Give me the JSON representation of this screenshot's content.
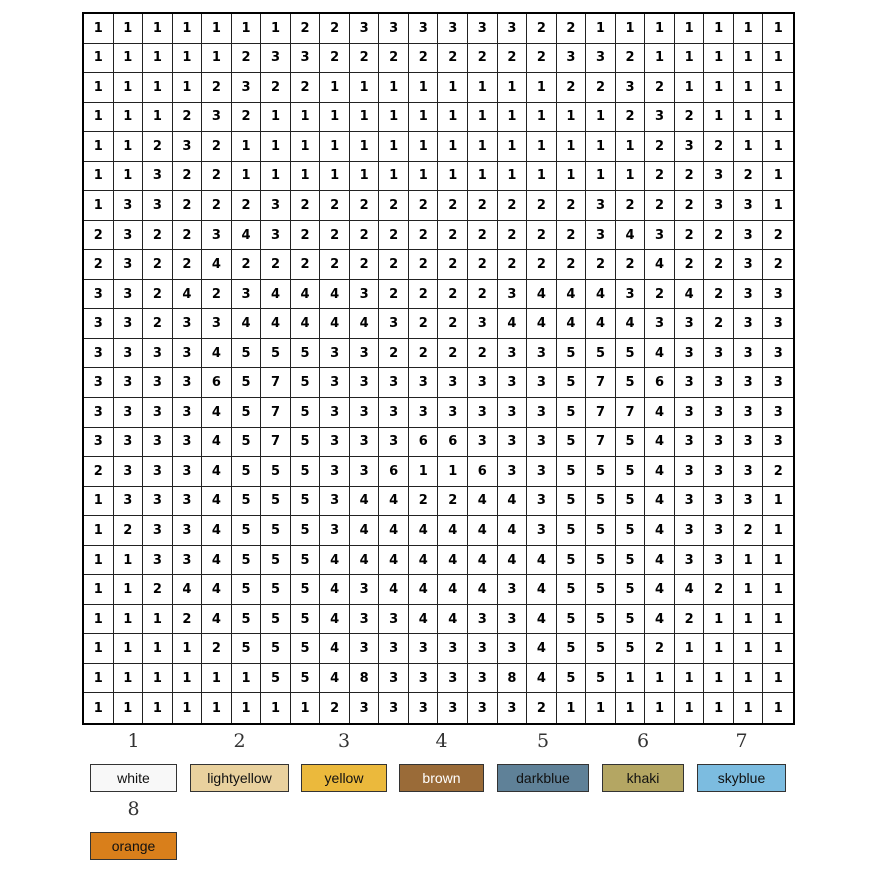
{
  "grid": [
    [
      1,
      1,
      1,
      1,
      1,
      1,
      1,
      2,
      2,
      3,
      3,
      3,
      3,
      3,
      3,
      2,
      2,
      1,
      1,
      1,
      1,
      1,
      1,
      1
    ],
    [
      1,
      1,
      1,
      1,
      1,
      2,
      3,
      3,
      2,
      2,
      2,
      2,
      2,
      2,
      2,
      2,
      3,
      3,
      2,
      1,
      1,
      1,
      1,
      1
    ],
    [
      1,
      1,
      1,
      1,
      2,
      3,
      2,
      2,
      1,
      1,
      1,
      1,
      1,
      1,
      1,
      1,
      2,
      2,
      3,
      2,
      1,
      1,
      1,
      1
    ],
    [
      1,
      1,
      1,
      2,
      3,
      2,
      1,
      1,
      1,
      1,
      1,
      1,
      1,
      1,
      1,
      1,
      1,
      1,
      2,
      3,
      2,
      1,
      1,
      1
    ],
    [
      1,
      1,
      2,
      3,
      2,
      1,
      1,
      1,
      1,
      1,
      1,
      1,
      1,
      1,
      1,
      1,
      1,
      1,
      1,
      2,
      3,
      2,
      1,
      1
    ],
    [
      1,
      1,
      3,
      2,
      2,
      1,
      1,
      1,
      1,
      1,
      1,
      1,
      1,
      1,
      1,
      1,
      1,
      1,
      1,
      2,
      2,
      3,
      2,
      1
    ],
    [
      1,
      3,
      3,
      2,
      2,
      2,
      3,
      2,
      2,
      2,
      2,
      2,
      2,
      2,
      2,
      2,
      2,
      3,
      2,
      2,
      2,
      3,
      3,
      1
    ],
    [
      2,
      3,
      2,
      2,
      3,
      4,
      3,
      2,
      2,
      2,
      2,
      2,
      2,
      2,
      2,
      2,
      2,
      3,
      4,
      3,
      2,
      2,
      3,
      2
    ],
    [
      2,
      3,
      2,
      2,
      4,
      2,
      2,
      2,
      2,
      2,
      2,
      2,
      2,
      2,
      2,
      2,
      2,
      2,
      2,
      4,
      2,
      2,
      3,
      2
    ],
    [
      3,
      3,
      2,
      4,
      2,
      3,
      4,
      4,
      4,
      3,
      2,
      2,
      2,
      2,
      3,
      4,
      4,
      4,
      3,
      2,
      4,
      2,
      3,
      3
    ],
    [
      3,
      3,
      2,
      3,
      3,
      4,
      4,
      4,
      4,
      4,
      3,
      2,
      2,
      3,
      4,
      4,
      4,
      4,
      4,
      3,
      3,
      2,
      3,
      3
    ],
    [
      3,
      3,
      3,
      3,
      4,
      5,
      5,
      5,
      3,
      3,
      2,
      2,
      2,
      2,
      3,
      3,
      5,
      5,
      5,
      4,
      3,
      3,
      3,
      3
    ],
    [
      3,
      3,
      3,
      3,
      6,
      5,
      7,
      5,
      3,
      3,
      3,
      3,
      3,
      3,
      3,
      3,
      5,
      7,
      5,
      6,
      3,
      3,
      3,
      3
    ],
    [
      3,
      3,
      3,
      3,
      4,
      5,
      7,
      5,
      3,
      3,
      3,
      3,
      3,
      3,
      3,
      3,
      5,
      7,
      7,
      4,
      3,
      3,
      3,
      3
    ],
    [
      3,
      3,
      3,
      3,
      4,
      5,
      7,
      5,
      3,
      3,
      3,
      6,
      6,
      3,
      3,
      3,
      5,
      7,
      5,
      4,
      3,
      3,
      3,
      3
    ],
    [
      2,
      3,
      3,
      3,
      4,
      5,
      5,
      5,
      3,
      3,
      6,
      1,
      1,
      6,
      3,
      3,
      5,
      5,
      5,
      4,
      3,
      3,
      3,
      2
    ],
    [
      1,
      3,
      3,
      3,
      4,
      5,
      5,
      5,
      3,
      4,
      4,
      2,
      2,
      4,
      4,
      3,
      5,
      5,
      5,
      4,
      3,
      3,
      3,
      1
    ],
    [
      1,
      2,
      3,
      3,
      4,
      5,
      5,
      5,
      3,
      4,
      4,
      4,
      4,
      4,
      4,
      3,
      5,
      5,
      5,
      4,
      3,
      3,
      2,
      1
    ],
    [
      1,
      1,
      3,
      3,
      4,
      5,
      5,
      5,
      4,
      4,
      4,
      4,
      4,
      4,
      4,
      4,
      5,
      5,
      5,
      4,
      3,
      3,
      1,
      1
    ],
    [
      1,
      1,
      2,
      4,
      4,
      5,
      5,
      5,
      4,
      3,
      4,
      4,
      4,
      4,
      3,
      4,
      5,
      5,
      5,
      4,
      4,
      2,
      1,
      1
    ],
    [
      1,
      1,
      1,
      2,
      4,
      5,
      5,
      5,
      4,
      3,
      3,
      4,
      4,
      3,
      3,
      4,
      5,
      5,
      5,
      4,
      2,
      1,
      1,
      1
    ],
    [
      1,
      1,
      1,
      1,
      2,
      5,
      5,
      5,
      4,
      3,
      3,
      3,
      3,
      3,
      3,
      4,
      5,
      5,
      5,
      2,
      1,
      1,
      1,
      1
    ],
    [
      1,
      1,
      1,
      1,
      1,
      1,
      5,
      5,
      4,
      8,
      3,
      3,
      3,
      3,
      8,
      4,
      5,
      5,
      1,
      1,
      1,
      1,
      1,
      1
    ],
    [
      1,
      1,
      1,
      1,
      1,
      1,
      1,
      1,
      2,
      3,
      3,
      3,
      3,
      3,
      3,
      2,
      1,
      1,
      1,
      1,
      1,
      1,
      1,
      1
    ]
  ],
  "legend": [
    {
      "number": "1",
      "name": "white",
      "color": "#f8f8f8",
      "text_color": "#111111"
    },
    {
      "number": "2",
      "name": "lightyellow",
      "color": "#e9d19e",
      "text_color": "#111111"
    },
    {
      "number": "3",
      "name": "yellow",
      "color": "#ebb93c",
      "text_color": "#111111"
    },
    {
      "number": "4",
      "name": "brown",
      "color": "#9a6b38",
      "text_color": "#ffffff"
    },
    {
      "number": "5",
      "name": "darkblue",
      "color": "#5f8198",
      "text_color": "#111111"
    },
    {
      "number": "6",
      "name": "khaki",
      "color": "#b4a663",
      "text_color": "#111111"
    },
    {
      "number": "7",
      "name": "skyblue",
      "color": "#7cbce0",
      "text_color": "#111111"
    },
    {
      "number": "8",
      "name": "orange",
      "color": "#d97f1b",
      "text_color": "#111111"
    }
  ]
}
